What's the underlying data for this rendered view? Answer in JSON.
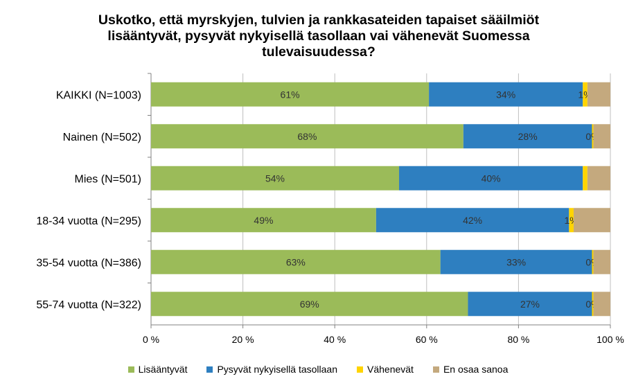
{
  "chart_data": {
    "type": "bar",
    "orientation": "horizontal",
    "stacked": true,
    "title_lines": [
      "Uskotko, että myrskyjen, tulvien ja rankkasateiden tapaiset sääilmiöt",
      "lisääntyvät, pysyvät nykyisellä tasollaan vai vähenevät Suomessa",
      "tulevaisuudessa?"
    ],
    "categories": [
      "KAIKKI (N=1003)",
      "Nainen (N=502)",
      "Mies (N=501)",
      "18-34 vuotta (N=295)",
      "35-54 vuotta (N=386)",
      "55-74 vuotta (N=322)"
    ],
    "series": [
      {
        "name": "Lisääntyvät",
        "color": "#9BBB59",
        "values": [
          60.5,
          68,
          54,
          49,
          63,
          69
        ],
        "labels": [
          "61%",
          "68%",
          "54%",
          "49%",
          "63%",
          "69%"
        ]
      },
      {
        "name": "Pysyvät nykyisellä tasollaan",
        "color": "#2E7FC0",
        "values": [
          33.5,
          28,
          40,
          42,
          33,
          27
        ],
        "labels": [
          "34%",
          "28%",
          "40%",
          "42%",
          "33%",
          "27%"
        ]
      },
      {
        "name": "Vähenevät",
        "color": "#FFD400",
        "values": [
          1,
          0.3,
          1,
          1,
          0.3,
          0.3
        ],
        "labels": [
          "1%",
          "0%",
          "",
          "1%",
          "0%",
          "0%"
        ]
      },
      {
        "name": "En osaa sanoa",
        "color": "#C4A97E",
        "values": [
          5,
          3.7,
          5,
          8,
          3.7,
          3.7
        ],
        "labels": [
          "",
          "",
          "",
          "",
          "",
          ""
        ]
      }
    ],
    "x_ticks": [
      "0 %",
      "20 %",
      "40 %",
      "60 %",
      "80 %",
      "100 %"
    ],
    "xlim": [
      0,
      100
    ],
    "grid": true,
    "legend_position": "bottom"
  }
}
